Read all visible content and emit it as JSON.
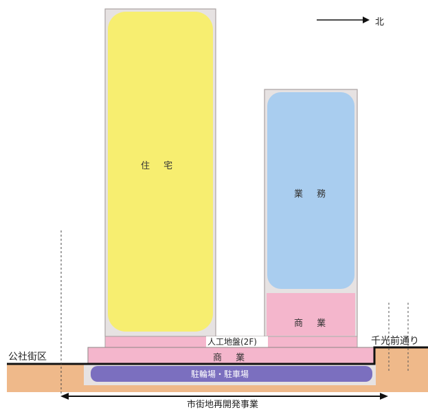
{
  "north": {
    "label": "北"
  },
  "buildings": {
    "tower_left": {
      "label": "住 宅"
    },
    "tower_right_office": {
      "label": "業 務"
    },
    "tower_right_commercial": {
      "label": "商 業"
    },
    "podium_commercial": {
      "label": "商 業"
    },
    "parking": {
      "label": "駐輪場・駐車場"
    },
    "artificial_ground": {
      "label": "人工地盤(2F)"
    }
  },
  "labels": {
    "left_district": "公社街区",
    "right_street": "千光前通り",
    "project": "市街地再開発事業"
  },
  "colors": {
    "residential": "#f7ee70",
    "office": "#a9cdef",
    "commercial": "#f4b6cc",
    "parking": "#7b6fbf",
    "ground": "#efb98a",
    "frame": "#e6e2e2"
  }
}
